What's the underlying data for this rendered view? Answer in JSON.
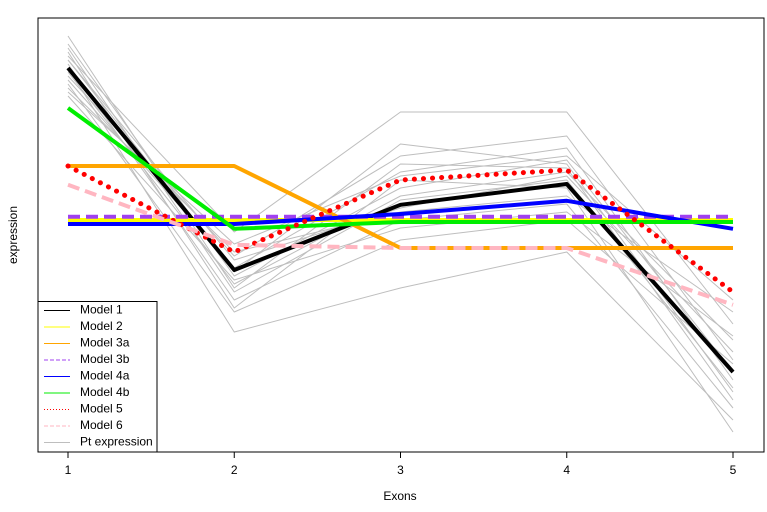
{
  "chart_data": {
    "type": "line",
    "xlabel": "Exons",
    "ylabel": "expression",
    "x": [
      1,
      2,
      3,
      4,
      5
    ],
    "xlim": [
      1,
      5
    ],
    "xticks": [
      1,
      2,
      3,
      4,
      5
    ],
    "ylim": [
      0,
      10.85
    ],
    "legend": "bottomleft",
    "series": [
      {
        "name": "Model 1",
        "color": "#000000",
        "dash": "solid",
        "values": [
          9.6,
          4.55,
          6.18,
          6.7,
          2.0
        ]
      },
      {
        "name": "Model 2",
        "color": "#ffff00",
        "dash": "solid",
        "values": [
          5.8,
          5.8,
          5.8,
          5.8,
          5.8
        ]
      },
      {
        "name": "Model 3a",
        "color": "#ffa500",
        "dash": "solid",
        "values": [
          7.15,
          7.15,
          5.1,
          5.1,
          5.1
        ]
      },
      {
        "name": "Model 3b",
        "color": "#a040f0",
        "dash": "dashed",
        "values": [
          5.88,
          5.88,
          5.88,
          5.88,
          5.88
        ]
      },
      {
        "name": "Model 4a",
        "color": "#0000ff",
        "dash": "solid",
        "values": [
          5.7,
          5.7,
          5.95,
          6.28,
          5.58
        ]
      },
      {
        "name": "Model 4b",
        "color": "#00ee00",
        "dash": "solid",
        "values": [
          8.6,
          5.58,
          5.75,
          5.75,
          5.75
        ]
      },
      {
        "name": "Model 5",
        "color": "#ff0000",
        "dash": "dotted",
        "values": [
          7.15,
          5.0,
          6.8,
          7.05,
          4.0
        ]
      },
      {
        "name": "Model 6",
        "color": "#ffb6c1",
        "dash": "dashed",
        "values": [
          6.68,
          5.18,
          5.1,
          5.1,
          3.68
        ]
      },
      {
        "name": "Pt expression",
        "color": "#bebebe",
        "dash": "solid",
        "values": [
          [
            10.4,
            4.1,
            7.2,
            7.1,
            1.3
          ],
          [
            10.2,
            4.4,
            6.6,
            7.3,
            2.0
          ],
          [
            10.0,
            3.6,
            6.8,
            6.6,
            0.5
          ],
          [
            9.8,
            4.8,
            6.1,
            6.9,
            2.5
          ],
          [
            9.9,
            5.5,
            8.5,
            8.5,
            3.2
          ],
          [
            9.7,
            3.8,
            5.8,
            6.2,
            1.1
          ],
          [
            9.5,
            4.2,
            6.4,
            7.0,
            2.8
          ],
          [
            9.3,
            4.6,
            7.0,
            7.6,
            1.8
          ],
          [
            9.6,
            3.0,
            4.1,
            5.0,
            0.8
          ],
          [
            9.1,
            5.0,
            6.0,
            6.4,
            3.5
          ],
          [
            9.4,
            4.9,
            7.4,
            7.9,
            2.3
          ],
          [
            8.9,
            4.3,
            5.6,
            6.0,
            2.9
          ],
          [
            10.1,
            4.0,
            6.3,
            6.8,
            1.6
          ],
          [
            9.2,
            3.5,
            5.3,
            5.8,
            2.2
          ],
          [
            9.0,
            5.2,
            6.9,
            7.4,
            3.8
          ],
          [
            9.8,
            4.5,
            7.7,
            7.2,
            1.5
          ]
        ]
      }
    ]
  }
}
